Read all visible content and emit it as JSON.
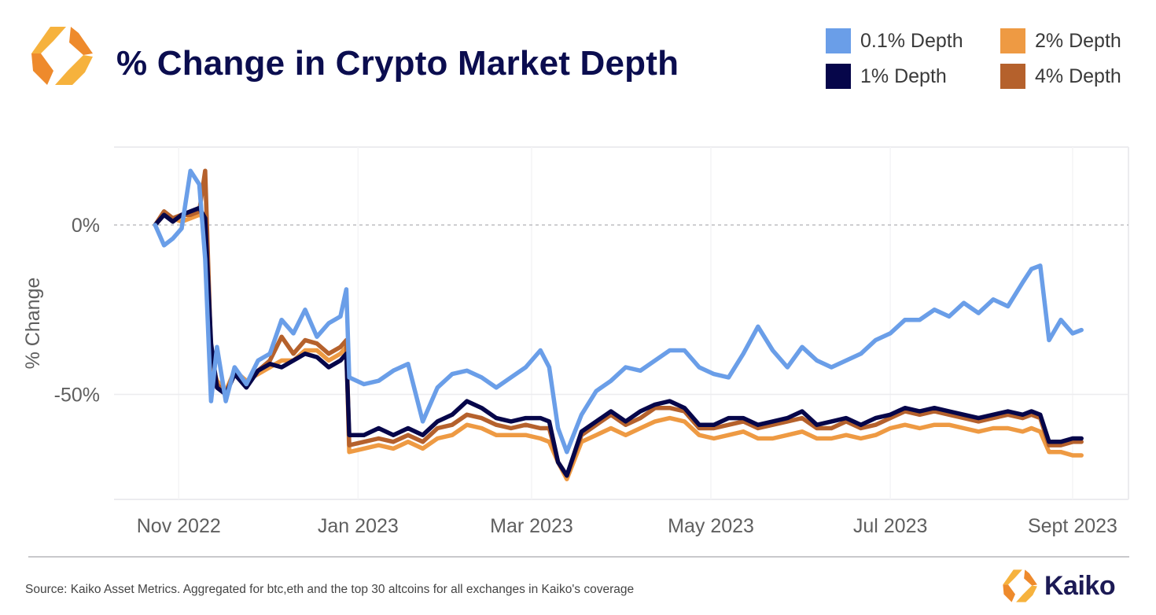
{
  "header": {
    "title": "% Change in Crypto Market Depth",
    "logo_icon": "kaiko-hexagon-logo-icon"
  },
  "legend": {
    "items": [
      {
        "label": "0.1% Depth",
        "color": "#6a9ee8"
      },
      {
        "label": "1% Depth",
        "color": "#06064a"
      },
      {
        "label": "2% Depth",
        "color": "#ee9a43"
      },
      {
        "label": "4% Depth",
        "color": "#b5612c"
      }
    ]
  },
  "footer": {
    "source": "Source: Kaiko Asset Metrics. Aggregated for btc,eth and the top 30 altcoins for all exchanges in Kaiko's coverage",
    "brand": "Kaiko"
  },
  "chart_data": {
    "type": "line",
    "title": "% Change in Crypto Market Depth",
    "xlabel": "",
    "ylabel": "% Change",
    "ylim": [
      -81,
      23
    ],
    "xlim": [
      "2022-10-10",
      "2023-09-20"
    ],
    "grid": true,
    "legend_position": "top-right",
    "y_ticks": [
      {
        "value": 0,
        "label": "0%"
      },
      {
        "value": -50,
        "label": "-50%"
      }
    ],
    "x_ticks": [
      {
        "date": "2022-11-01",
        "label": "Nov 2022"
      },
      {
        "date": "2023-01-01",
        "label": "Jan 2023"
      },
      {
        "date": "2023-03-01",
        "label": "Mar 2023"
      },
      {
        "date": "2023-05-01",
        "label": "May 2023"
      },
      {
        "date": "2023-07-01",
        "label": "Jul 2023"
      },
      {
        "date": "2023-09-01",
        "label": "Sept 2023"
      }
    ],
    "x": [
      "2022-10-24",
      "2022-10-27",
      "2022-10-30",
      "2022-11-02",
      "2022-11-05",
      "2022-11-08",
      "2022-11-10",
      "2022-11-12",
      "2022-11-14",
      "2022-11-17",
      "2022-11-20",
      "2022-11-24",
      "2022-11-28",
      "2022-12-02",
      "2022-12-06",
      "2022-12-10",
      "2022-12-14",
      "2022-12-18",
      "2022-12-22",
      "2022-12-26",
      "2022-12-28",
      "2022-12-29",
      "2023-01-03",
      "2023-01-08",
      "2023-01-13",
      "2023-01-18",
      "2023-01-23",
      "2023-01-28",
      "2023-02-02",
      "2023-02-07",
      "2023-02-12",
      "2023-02-17",
      "2023-02-22",
      "2023-02-27",
      "2023-03-04",
      "2023-03-07",
      "2023-03-10",
      "2023-03-13",
      "2023-03-18",
      "2023-03-23",
      "2023-03-28",
      "2023-04-02",
      "2023-04-07",
      "2023-04-12",
      "2023-04-17",
      "2023-04-22",
      "2023-04-27",
      "2023-05-02",
      "2023-05-07",
      "2023-05-12",
      "2023-05-17",
      "2023-05-22",
      "2023-05-27",
      "2023-06-01",
      "2023-06-06",
      "2023-06-11",
      "2023-06-16",
      "2023-06-21",
      "2023-06-26",
      "2023-07-01",
      "2023-07-06",
      "2023-07-11",
      "2023-07-16",
      "2023-07-21",
      "2023-07-26",
      "2023-07-31",
      "2023-08-05",
      "2023-08-10",
      "2023-08-15",
      "2023-08-18",
      "2023-08-21",
      "2023-08-24",
      "2023-08-28",
      "2023-09-01",
      "2023-09-04"
    ],
    "series": [
      {
        "name": "0.1% Depth",
        "color": "#6a9ee8",
        "values": [
          0,
          -6,
          -4,
          -1,
          16,
          12,
          -10,
          -52,
          -36,
          -52,
          -42,
          -47,
          -40,
          -38,
          -28,
          -32,
          -25,
          -33,
          -29,
          -27,
          -19,
          -45,
          -47,
          -46,
          -43,
          -41,
          -58,
          -48,
          -44,
          -43,
          -45,
          -48,
          -45,
          -42,
          -37,
          -42,
          -60,
          -67,
          -56,
          -49,
          -46,
          -42,
          -43,
          -40,
          -37,
          -37,
          -42,
          -44,
          -45,
          -38,
          -30,
          -37,
          -42,
          -36,
          -40,
          -42,
          -40,
          -38,
          -34,
          -32,
          -28,
          -28,
          -25,
          -27,
          -23,
          -26,
          -22,
          -24,
          -17,
          -13,
          -12,
          -34,
          -28,
          -32,
          -31
        ]
      },
      {
        "name": "1% Depth",
        "color": "#06064a",
        "values": [
          0,
          3,
          1,
          3,
          4,
          5,
          2,
          -35,
          -48,
          -50,
          -44,
          -48,
          -43,
          -41,
          -42,
          -40,
          -38,
          -39,
          -42,
          -40,
          -38,
          -62,
          -62,
          -60,
          -62,
          -60,
          -62,
          -58,
          -56,
          -52,
          -54,
          -57,
          -58,
          -57,
          -57,
          -58,
          -70,
          -74,
          -61,
          -58,
          -55,
          -58,
          -55,
          -53,
          -52,
          -54,
          -59,
          -59,
          -57,
          -57,
          -59,
          -58,
          -57,
          -55,
          -59,
          -58,
          -57,
          -59,
          -57,
          -56,
          -54,
          -55,
          -54,
          -55,
          -56,
          -57,
          -56,
          -55,
          -56,
          -55,
          -56,
          -64,
          -64,
          -63,
          -63
        ]
      },
      {
        "name": "2% Depth",
        "color": "#ee9a43",
        "values": [
          0,
          3,
          2,
          1,
          2,
          3,
          2,
          -40,
          -46,
          -49,
          -43,
          -46,
          -44,
          -42,
          -40,
          -40,
          -37,
          -37,
          -40,
          -38,
          -36,
          -67,
          -66,
          -65,
          -66,
          -64,
          -66,
          -63,
          -62,
          -59,
          -60,
          -62,
          -62,
          -62,
          -63,
          -64,
          -70,
          -75,
          -64,
          -62,
          -60,
          -62,
          -60,
          -58,
          -57,
          -58,
          -62,
          -63,
          -62,
          -61,
          -63,
          -63,
          -62,
          -61,
          -63,
          -63,
          -62,
          -63,
          -62,
          -60,
          -59,
          -60,
          -59,
          -59,
          -60,
          -61,
          -60,
          -60,
          -61,
          -60,
          -61,
          -67,
          -67,
          -68,
          -68
        ]
      },
      {
        "name": "4% Depth",
        "color": "#b5612c",
        "values": [
          0,
          4,
          2,
          3,
          3,
          4,
          16,
          -38,
          -47,
          -50,
          -43,
          -47,
          -43,
          -40,
          -33,
          -38,
          -34,
          -35,
          -38,
          -36,
          -34,
          -65,
          -64,
          -63,
          -64,
          -62,
          -64,
          -60,
          -59,
          -56,
          -57,
          -59,
          -60,
          -59,
          -60,
          -60,
          -70,
          -74,
          -62,
          -59,
          -56,
          -59,
          -57,
          -54,
          -54,
          -55,
          -60,
          -60,
          -59,
          -58,
          -60,
          -59,
          -58,
          -57,
          -60,
          -60,
          -58,
          -60,
          -59,
          -57,
          -55,
          -56,
          -55,
          -56,
          -57,
          -58,
          -57,
          -56,
          -57,
          -56,
          -57,
          -65,
          -65,
          -64,
          -64
        ]
      }
    ]
  }
}
